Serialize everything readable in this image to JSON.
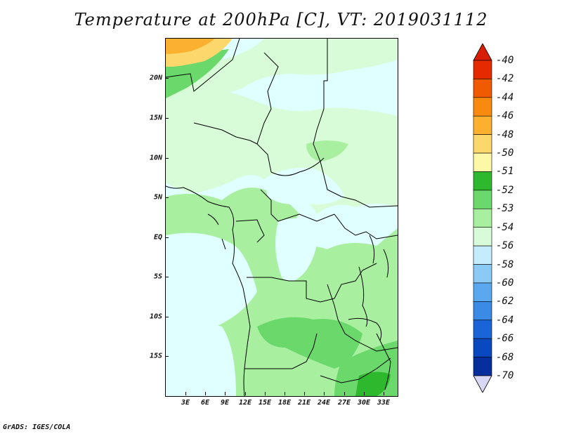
{
  "title": "Temperature at 200hPa [C], VT: 2019031112",
  "footer": "GrADS: IGES/COLA",
  "map": {
    "y_ticks": [
      "20N",
      "15N",
      "10N",
      "5N",
      "EQ",
      "5S",
      "10S",
      "15S"
    ],
    "x_ticks": [
      "3E",
      "6E",
      "9E",
      "12E",
      "15E",
      "18E",
      "21E",
      "24E",
      "27E",
      "30E",
      "33E"
    ]
  },
  "colorbar": {
    "labels": [
      "-40",
      "-42",
      "-44",
      "-46",
      "-48",
      "-50",
      "-51",
      "-52",
      "-53",
      "-54",
      "-56",
      "-58",
      "-60",
      "-62",
      "-64",
      "-66",
      "-68",
      "-70"
    ],
    "colors": [
      "#e62a00",
      "#f05a00",
      "#f88a10",
      "#fcb030",
      "#fcd86c",
      "#fcf8a8",
      "#2eb82e",
      "#6ad86a",
      "#a8f0a0",
      "#d8fcd8",
      "#c4ecfc",
      "#8ccaf6",
      "#5aa8f0",
      "#3a8ae6",
      "#1a64d8",
      "#0a48c0",
      "#062e9c",
      "#d8d8f6"
    ],
    "top_arrow_color": "#d81e00",
    "bottom_arrow_color": "#d8d8f6"
  }
}
